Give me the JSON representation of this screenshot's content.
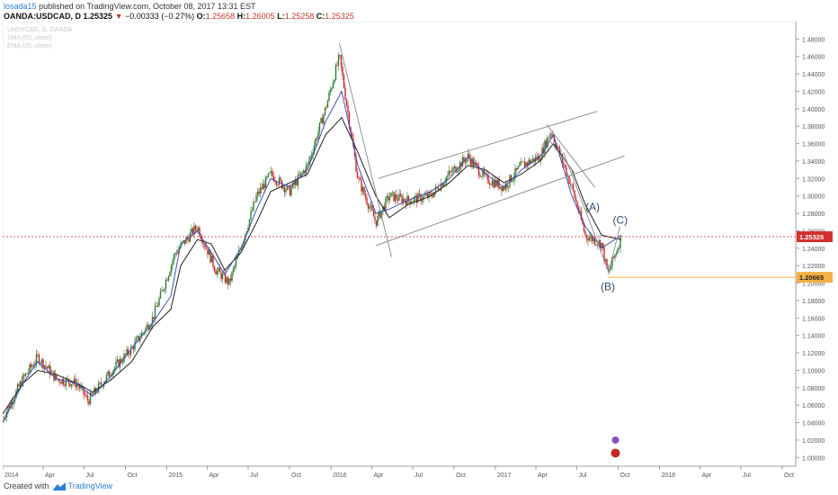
{
  "header": {
    "user": "losada15",
    "published": "published on TradingView.com, October 08, 2017 13:31 EST",
    "symbol": "OANDA:USDCAD, D",
    "last": "1.25325",
    "change": "−0.00333 (−0.27%)",
    "open_label": "O:",
    "open": "1.25658",
    "high_label": "H:",
    "high": "1.26005",
    "low_label": "L:",
    "low": "1.25258",
    "close_label": "C:",
    "close": "1.25325"
  },
  "watermark": {
    "line1": "UNDYCAD, D, OANDA",
    "line2": "SMA (50, close)",
    "line3": "EMA (20, close)"
  },
  "footer": {
    "created": "Created with",
    "brand": "TradingView"
  },
  "colors": {
    "up": "#2e7d32",
    "down": "#c62828",
    "ma_fast": "#3f51b5",
    "ma_slow": "#212121",
    "price_line": "#d32f2f",
    "support_line": "#f5b041",
    "channel": "#888888"
  },
  "chart_data": {
    "type": "line",
    "title": "",
    "xlabel": "",
    "ylabel": "",
    "ylim": [
      0.99,
      1.5
    ],
    "y_ticks": [
      1.48,
      1.46,
      1.44,
      1.42,
      1.4,
      1.38,
      1.36,
      1.34,
      1.32,
      1.3,
      1.28,
      1.26,
      1.24,
      1.22,
      1.2,
      1.18,
      1.16,
      1.14,
      1.12,
      1.1,
      1.08,
      1.06,
      1.04,
      1.02,
      1.0
    ],
    "y_tick_labels": [
      "1.48000",
      "1.46000",
      "1.44000",
      "1.42000",
      "1.40000",
      "1.38000",
      "1.36000",
      "1.34000",
      "1.32000",
      "1.30000",
      "1.28000",
      "1.26000",
      "1.24000",
      "1.22000",
      "1.20000",
      "1.18000",
      "1.16000",
      "1.14000",
      "1.12000",
      "1.10000",
      "1.08000",
      "1.06000",
      "1.04000",
      "1.02000",
      "1.00000"
    ],
    "x_range": [
      "2014-01-01",
      "2018-10-31"
    ],
    "x_ticks": [
      {
        "label": "2014",
        "date": "2014-01-01"
      },
      {
        "label": "Apr",
        "date": "2014-04-01"
      },
      {
        "label": "Jul",
        "date": "2014-07-01"
      },
      {
        "label": "Oct",
        "date": "2014-10-01"
      },
      {
        "label": "2015",
        "date": "2015-01-01"
      },
      {
        "label": "Apr",
        "date": "2015-04-01"
      },
      {
        "label": "Jul",
        "date": "2015-07-01"
      },
      {
        "label": "Oct",
        "date": "2015-10-01"
      },
      {
        "label": "2016",
        "date": "2016-01-01"
      },
      {
        "label": "Apr",
        "date": "2016-04-01"
      },
      {
        "label": "Jul",
        "date": "2016-07-01"
      },
      {
        "label": "Oct",
        "date": "2016-10-01"
      },
      {
        "label": "2017",
        "date": "2017-01-01"
      },
      {
        "label": "Apr",
        "date": "2017-04-01"
      },
      {
        "label": "Jul",
        "date": "2017-07-01"
      },
      {
        "label": "Oct",
        "date": "2017-10-01"
      },
      {
        "label": "2018",
        "date": "2018-01-01"
      },
      {
        "label": "Apr",
        "date": "2018-04-01"
      },
      {
        "label": "Jul",
        "date": "2018-07-01"
      },
      {
        "label": "Oct",
        "date": "2018-10-01"
      }
    ],
    "series": [
      {
        "name": "SMA (50, close)",
        "points": [
          [
            "2014-01-01",
            1.05
          ],
          [
            "2014-02-15",
            1.085
          ],
          [
            "2014-03-20",
            1.1
          ],
          [
            "2014-05-01",
            1.095
          ],
          [
            "2014-06-15",
            1.085
          ],
          [
            "2014-07-20",
            1.075
          ],
          [
            "2014-09-01",
            1.09
          ],
          [
            "2014-10-15",
            1.11
          ],
          [
            "2014-12-01",
            1.15
          ],
          [
            "2015-01-10",
            1.17
          ],
          [
            "2015-02-01",
            1.22
          ],
          [
            "2015-03-10",
            1.25
          ],
          [
            "2015-04-10",
            1.245
          ],
          [
            "2015-05-10",
            1.215
          ],
          [
            "2015-06-15",
            1.235
          ],
          [
            "2015-07-20",
            1.27
          ],
          [
            "2015-08-20",
            1.305
          ],
          [
            "2015-10-01",
            1.315
          ],
          [
            "2015-11-10",
            1.325
          ],
          [
            "2015-12-20",
            1.37
          ],
          [
            "2016-01-25",
            1.39
          ],
          [
            "2016-03-01",
            1.35
          ],
          [
            "2016-04-10",
            1.3
          ],
          [
            "2016-05-10",
            1.275
          ],
          [
            "2016-06-20",
            1.29
          ],
          [
            "2016-08-10",
            1.3
          ],
          [
            "2016-09-20",
            1.315
          ],
          [
            "2016-11-01",
            1.335
          ],
          [
            "2016-12-10",
            1.33
          ],
          [
            "2017-01-20",
            1.315
          ],
          [
            "2017-02-28",
            1.325
          ],
          [
            "2017-04-10",
            1.34
          ],
          [
            "2017-05-10",
            1.36
          ],
          [
            "2017-06-20",
            1.33
          ],
          [
            "2017-07-20",
            1.29
          ],
          [
            "2017-08-25",
            1.255
          ],
          [
            "2017-10-08",
            1.25
          ]
        ]
      },
      {
        "name": "EMA (20, close)",
        "points": [
          [
            "2014-01-01",
            1.04
          ],
          [
            "2014-02-15",
            1.085
          ],
          [
            "2014-03-20",
            1.11
          ],
          [
            "2014-05-01",
            1.09
          ],
          [
            "2014-06-15",
            1.085
          ],
          [
            "2014-07-20",
            1.07
          ],
          [
            "2014-09-01",
            1.095
          ],
          [
            "2014-10-15",
            1.125
          ],
          [
            "2014-12-01",
            1.155
          ],
          [
            "2015-01-10",
            1.185
          ],
          [
            "2015-02-01",
            1.245
          ],
          [
            "2015-03-10",
            1.26
          ],
          [
            "2015-04-10",
            1.235
          ],
          [
            "2015-05-10",
            1.21
          ],
          [
            "2015-06-15",
            1.24
          ],
          [
            "2015-07-20",
            1.285
          ],
          [
            "2015-08-20",
            1.32
          ],
          [
            "2015-10-01",
            1.31
          ],
          [
            "2015-11-10",
            1.33
          ],
          [
            "2015-12-20",
            1.385
          ],
          [
            "2016-01-25",
            1.42
          ],
          [
            "2016-03-01",
            1.335
          ],
          [
            "2016-04-10",
            1.28
          ],
          [
            "2016-05-10",
            1.285
          ],
          [
            "2016-06-20",
            1.295
          ],
          [
            "2016-08-10",
            1.305
          ],
          [
            "2016-09-20",
            1.32
          ],
          [
            "2016-11-01",
            1.345
          ],
          [
            "2016-12-10",
            1.325
          ],
          [
            "2017-01-20",
            1.31
          ],
          [
            "2017-02-28",
            1.33
          ],
          [
            "2017-04-10",
            1.345
          ],
          [
            "2017-05-10",
            1.37
          ],
          [
            "2017-06-20",
            1.3
          ],
          [
            "2017-07-20",
            1.265
          ],
          [
            "2017-08-25",
            1.24
          ],
          [
            "2017-10-08",
            1.255
          ]
        ]
      }
    ],
    "candle_path": [
      [
        "2014-01-01",
        1.045
      ],
      [
        "2014-02-15",
        1.09
      ],
      [
        "2014-03-20",
        1.115
      ],
      [
        "2014-05-01",
        1.09
      ],
      [
        "2014-06-15",
        1.085
      ],
      [
        "2014-07-10",
        1.065
      ],
      [
        "2014-09-01",
        1.1
      ],
      [
        "2014-10-15",
        1.125
      ],
      [
        "2014-12-01",
        1.16
      ],
      [
        "2015-01-20",
        1.235
      ],
      [
        "2015-03-10",
        1.265
      ],
      [
        "2015-04-20",
        1.215
      ],
      [
        "2015-05-20",
        1.2
      ],
      [
        "2015-06-20",
        1.25
      ],
      [
        "2015-07-20",
        1.3
      ],
      [
        "2015-08-20",
        1.325
      ],
      [
        "2015-10-01",
        1.305
      ],
      [
        "2015-11-10",
        1.335
      ],
      [
        "2015-12-20",
        1.4
      ],
      [
        "2016-01-20",
        1.46
      ],
      [
        "2016-03-01",
        1.32
      ],
      [
        "2016-04-10",
        1.27
      ],
      [
        "2016-05-10",
        1.3
      ],
      [
        "2016-06-20",
        1.295
      ],
      [
        "2016-08-10",
        1.3
      ],
      [
        "2016-09-20",
        1.325
      ],
      [
        "2016-11-01",
        1.345
      ],
      [
        "2016-12-10",
        1.32
      ],
      [
        "2017-01-20",
        1.31
      ],
      [
        "2017-02-28",
        1.335
      ],
      [
        "2017-04-10",
        1.345
      ],
      [
        "2017-05-05",
        1.375
      ],
      [
        "2017-06-20",
        1.31
      ],
      [
        "2017-07-20",
        1.255
      ],
      [
        "2017-08-25",
        1.245
      ],
      [
        "2017-09-08",
        1.21
      ],
      [
        "2017-10-08",
        1.253
      ]
    ],
    "current_price": {
      "value": 1.25325,
      "label": "1.25325"
    },
    "support_level": {
      "value": 1.20665,
      "label": "1.20665",
      "from": "2017-09-08"
    },
    "annotations": [
      {
        "text": "(A)",
        "date": "2017-08-05",
        "price": 1.283
      },
      {
        "text": "(B)",
        "date": "2017-09-08",
        "price": 1.192
      },
      {
        "text": "(C)",
        "date": "2017-10-05",
        "price": 1.268
      }
    ],
    "trendlines": [
      {
        "from": [
          "2016-01-20",
          1.475
        ],
        "to": [
          "2016-05-15",
          1.23
        ]
      },
      {
        "from": [
          "2016-04-10",
          1.243
        ],
        "to": [
          "2017-10-15",
          1.346
        ]
      },
      {
        "from": [
          "2016-04-15",
          1.32
        ],
        "to": [
          "2017-08-15",
          1.397
        ]
      },
      {
        "from": [
          "2017-04-25",
          1.382
        ],
        "to": [
          "2017-08-10",
          1.31
        ]
      },
      {
        "from": [
          "2017-04-25",
          1.368
        ],
        "to": [
          "2017-06-25",
          1.327
        ]
      },
      {
        "from": [
          "2017-06-01",
          1.35
        ],
        "to": [
          "2017-09-10",
          1.213
        ]
      },
      {
        "from": [
          "2017-09-10",
          1.213
        ],
        "to": [
          "2017-10-05",
          1.265
        ]
      }
    ]
  }
}
